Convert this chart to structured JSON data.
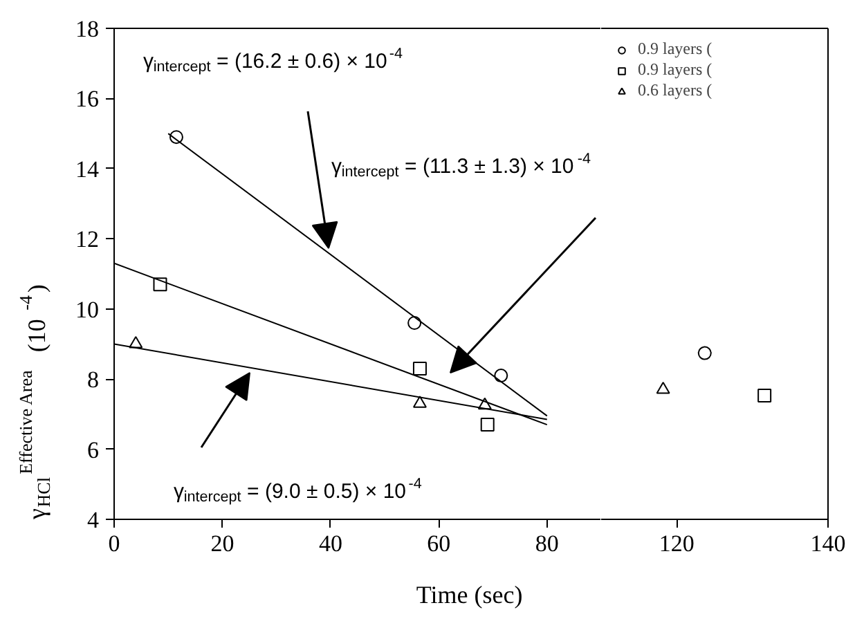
{
  "chart_data": [
    {
      "type": "scatter",
      "xlabel": "Time (sec)",
      "ylabel": "γ$_{HCl}$$^{Effective Area}$ (10$^{-4}$)",
      "xlim": [
        0,
        90
      ],
      "xticks": [
        0,
        20,
        40,
        60,
        80
      ],
      "ylim": [
        4,
        18
      ],
      "yticks": [
        4,
        6,
        8,
        10,
        12,
        14,
        16,
        18
      ],
      "grid": false,
      "annotations": [
        "γ$_{intercept}$ = (16.2 ± 0.6) × 10$^{-4}$",
        "γ$_{intercept}$ = (11.3 ± 1.3) × 10$^{-4}$",
        "γ$_{intercept}$ = (9.0 ± 0.5) × 10$^{-4}$"
      ],
      "series": [
        {
          "marker": "circle",
          "color": "#000000",
          "x": [
            11.5,
            55.5,
            71.5
          ],
          "values": [
            14.9,
            9.6,
            8.1
          ]
        },
        {
          "marker": "square",
          "color": "#000000",
          "x": [
            8.5,
            56.5,
            69
          ],
          "values": [
            10.7,
            8.3,
            6.7
          ]
        },
        {
          "marker": "triangle",
          "color": "#000000",
          "x": [
            4,
            56.5,
            68.5
          ],
          "values": [
            9.0,
            7.3,
            7.25
          ]
        },
        {
          "type": "line",
          "line_style": "solid",
          "color": "#000000",
          "x": [
            10,
            80
          ],
          "values": [
            15.0,
            6.95
          ]
        },
        {
          "type": "line",
          "line_style": "solid",
          "color": "#000000",
          "x": [
            0,
            80
          ],
          "values": [
            11.3,
            6.7
          ]
        },
        {
          "type": "line",
          "line_style": "solid",
          "color": "#000000",
          "x": [
            0,
            80
          ],
          "values": [
            9.0,
            6.85
          ]
        }
      ]
    },
    {
      "type": "scatter",
      "xlim": [
        110,
        140
      ],
      "xticks": [
        120,
        140
      ],
      "ylim": [
        4,
        18
      ],
      "tick_labels": "x",
      "grid": false,
      "legend": "top left",
      "series": [
        {
          "marker": "circle",
          "name": "0.9 layers (",
          "color": "#000000",
          "x": [
            123.7
          ],
          "values": [
            8.74
          ]
        },
        {
          "marker": "square",
          "name": "0.9 layers (",
          "color": "#000000",
          "x": [
            131.6
          ],
          "values": [
            7.53
          ]
        },
        {
          "marker": "triangle",
          "name": "0.6 layers (",
          "color": "#000000",
          "x": [
            118.2
          ],
          "values": [
            7.7
          ]
        }
      ]
    }
  ]
}
